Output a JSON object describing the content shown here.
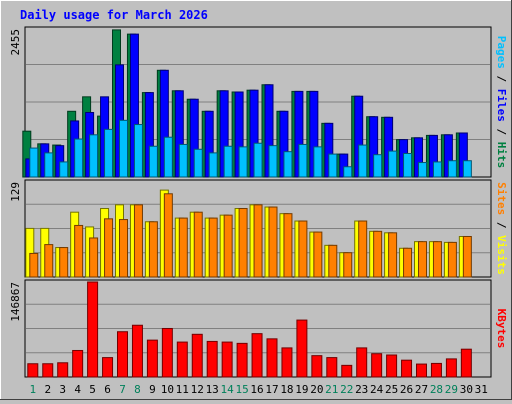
{
  "chart_data": [
    {
      "type": "bar",
      "title": "Daily usage for March 2026",
      "categories": [
        "1",
        "2",
        "3",
        "4",
        "5",
        "6",
        "7",
        "8",
        "9",
        "10",
        "11",
        "12",
        "13",
        "14",
        "15",
        "16",
        "17",
        "18",
        "19",
        "20",
        "21",
        "22",
        "23",
        "24",
        "25",
        "26",
        "27",
        "28",
        "29",
        "30",
        "31"
      ],
      "weekend_days": [
        "1",
        "7",
        "8",
        "14",
        "15",
        "21",
        "22",
        "28",
        "29"
      ],
      "y_max_label": "2455",
      "ylim": [
        0,
        2455
      ],
      "y_label_parts": [
        {
          "text": "Pages",
          "color": "#00c0ff"
        },
        {
          "text": " / ",
          "color": "#000000"
        },
        {
          "text": "Files",
          "color": "#0000ff"
        },
        {
          "text": " / ",
          "color": "#000000"
        },
        {
          "text": "Hits",
          "color": "#008040"
        }
      ],
      "series": [
        {
          "name": "Hits",
          "color": "#008040",
          "values": [
            760,
            550,
            530,
            1090,
            1330,
            1010,
            2440,
            2370,
            1400,
            1770,
            1430,
            1290,
            1090,
            1430,
            1410,
            1440,
            1530,
            1090,
            1420,
            1420,
            890,
            380,
            1340,
            1000,
            990,
            620,
            650,
            690,
            700,
            730,
            0
          ]
        },
        {
          "name": "Files",
          "color": "#0000ff",
          "values": [
            300,
            550,
            520,
            930,
            1070,
            1330,
            1860,
            2370,
            1400,
            1770,
            1430,
            1290,
            1090,
            1430,
            1410,
            1440,
            1530,
            1090,
            1420,
            1420,
            890,
            380,
            1340,
            1000,
            990,
            620,
            650,
            690,
            700,
            730,
            0
          ]
        },
        {
          "name": "Pages",
          "color": "#00c0ff",
          "values": [
            480,
            400,
            250,
            630,
            700,
            790,
            940,
            870,
            510,
            660,
            540,
            460,
            400,
            510,
            500,
            560,
            520,
            420,
            540,
            500,
            380,
            170,
            530,
            370,
            430,
            390,
            240,
            250,
            270,
            270,
            0
          ]
        }
      ]
    },
    {
      "type": "bar",
      "y_max_label": "129",
      "ylim": [
        0,
        129
      ],
      "y_label_parts": [
        {
          "text": "Sites",
          "color": "#ff8000"
        },
        {
          "text": " / ",
          "color": "#000000"
        },
        {
          "text": "Visits",
          "color": "#ffff00"
        }
      ],
      "series": [
        {
          "name": "Visits",
          "color": "#ffff00",
          "values": [
            66,
            66,
            40,
            88,
            68,
            93,
            98,
            98,
            75,
            118,
            80,
            88,
            80,
            84,
            93,
            98,
            95,
            86,
            76,
            61,
            43,
            33,
            76,
            62,
            60,
            39,
            48,
            48,
            47,
            55,
            0
          ]
        },
        {
          "name": "Sites",
          "color": "#ff8000",
          "values": [
            32,
            44,
            40,
            70,
            53,
            79,
            78,
            98,
            75,
            113,
            80,
            88,
            80,
            84,
            93,
            98,
            95,
            86,
            76,
            61,
            43,
            33,
            76,
            62,
            60,
            39,
            48,
            48,
            47,
            55,
            0
          ]
        }
      ]
    },
    {
      "type": "bar",
      "y_max_label": "146867",
      "ylim": [
        0,
        146867
      ],
      "y_label_parts": [
        {
          "text": "KBytes",
          "color": "#ff0000"
        }
      ],
      "series": [
        {
          "name": "KBytes",
          "color": "#ff0000",
          "values": [
            20500,
            20500,
            22000,
            41000,
            146867,
            30000,
            70000,
            80000,
            57000,
            75000,
            54000,
            66000,
            55000,
            54000,
            52000,
            67000,
            59000,
            45000,
            88000,
            33000,
            30000,
            18000,
            45000,
            36000,
            34000,
            26000,
            20000,
            21000,
            28000,
            43000,
            0
          ]
        }
      ]
    }
  ]
}
